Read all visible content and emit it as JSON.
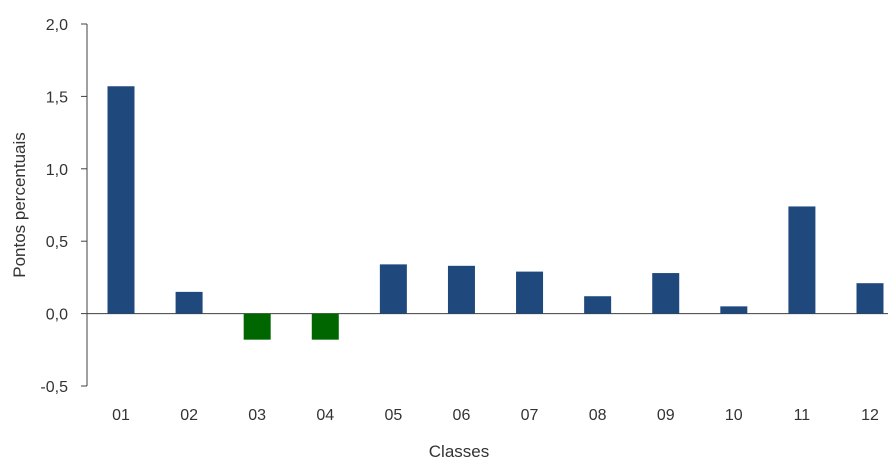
{
  "chart_data": {
    "type": "bar",
    "title": "",
    "xlabel": "Classes",
    "ylabel": "Pontos percentuais",
    "ylim": [
      -0.5,
      2.0
    ],
    "yticks": [
      "-0,5",
      "0,0",
      "0,5",
      "1,0",
      "1,5",
      "2,0"
    ],
    "ytick_values": [
      -0.5,
      0.0,
      0.5,
      1.0,
      1.5,
      2.0
    ],
    "categories": [
      "01",
      "02",
      "03",
      "04",
      "05",
      "06",
      "07",
      "08",
      "09",
      "10",
      "11",
      "12"
    ],
    "values": [
      1.57,
      0.15,
      -0.18,
      -0.18,
      0.34,
      0.33,
      0.29,
      0.12,
      0.28,
      0.05,
      0.74,
      0.21
    ],
    "grid": false,
    "colors": {
      "positive": "#1f497d",
      "negative": "#006600",
      "axis": "#404040"
    }
  }
}
